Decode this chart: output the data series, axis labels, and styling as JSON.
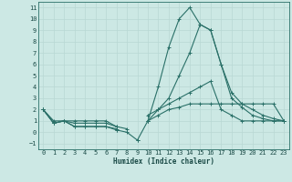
{
  "xlabel": "Humidex (Indice chaleur)",
  "background_color": "#cce8e4",
  "grid_color": "#b8d8d4",
  "line_color": "#2a7068",
  "xlim": [
    -0.5,
    23.5
  ],
  "ylim": [
    -1.5,
    11.5
  ],
  "xticks": [
    0,
    1,
    2,
    3,
    4,
    5,
    6,
    7,
    8,
    9,
    10,
    11,
    12,
    13,
    14,
    15,
    16,
    17,
    18,
    19,
    20,
    21,
    22,
    23
  ],
  "yticks": [
    -1,
    0,
    1,
    2,
    3,
    4,
    5,
    6,
    7,
    8,
    9,
    10,
    11
  ],
  "lines": [
    {
      "x": [
        0,
        1,
        2,
        3,
        4,
        5,
        6,
        7
      ],
      "y": [
        2,
        0.8,
        1,
        0.5,
        0.5,
        0.5,
        0.5,
        0.2
      ]
    },
    {
      "x": [
        7,
        8,
        9
      ],
      "y": [
        0.2,
        0.0,
        -0.7
      ]
    },
    {
      "x": [
        9,
        10,
        11,
        12,
        13,
        14,
        15,
        16,
        17,
        18,
        19,
        20,
        21,
        22,
        23
      ],
      "y": [
        -0.7,
        1,
        4,
        7.5,
        10,
        11,
        9.5,
        9,
        6,
        3,
        2.2,
        1.5,
        1.2,
        1,
        1
      ]
    },
    {
      "x": [
        0,
        1,
        2,
        3,
        4,
        5,
        6,
        7
      ],
      "y": [
        2,
        0.8,
        1,
        0.5,
        0.5,
        0.5,
        0.5,
        0.3
      ]
    },
    {
      "x": [
        10,
        11,
        12,
        13,
        14,
        15,
        16,
        17,
        18,
        19,
        20,
        21,
        22,
        23
      ],
      "y": [
        1.5,
        2,
        3,
        5,
        7,
        9.5,
        9,
        6,
        3.5,
        2.5,
        2,
        1.5,
        1.2,
        1
      ]
    },
    {
      "x": [
        0,
        1,
        2,
        3,
        4,
        5,
        6,
        7
      ],
      "y": [
        2,
        0.8,
        1,
        0.8,
        0.8,
        0.8,
        0.8,
        0.5
      ]
    },
    {
      "x": [
        10,
        11,
        12,
        13,
        14,
        15,
        16,
        17,
        18,
        19,
        20,
        21,
        22,
        23
      ],
      "y": [
        1,
        2,
        2.5,
        3,
        3.5,
        4,
        4.5,
        2,
        1.5,
        1,
        1,
        1,
        1,
        1
      ]
    },
    {
      "x": [
        0,
        1,
        2,
        3,
        4,
        5,
        6,
        7,
        8
      ],
      "y": [
        2,
        1,
        1,
        1,
        1,
        1,
        1,
        0.5,
        0.3
      ]
    },
    {
      "x": [
        10,
        11,
        12,
        13,
        14,
        15,
        16,
        17,
        18,
        19,
        20,
        21,
        22,
        23
      ],
      "y": [
        1,
        1.5,
        2,
        2.2,
        2.5,
        2.5,
        2.5,
        2.5,
        2.5,
        2.5,
        2.5,
        2.5,
        2.5,
        1
      ]
    }
  ]
}
